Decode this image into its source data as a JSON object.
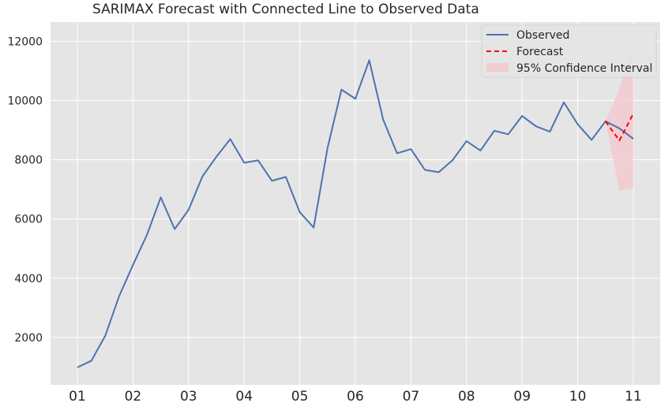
{
  "chart_data": {
    "type": "line",
    "title": "SARIMAX Forecast with Connected Line to Observed Data",
    "xlabel": "",
    "ylabel": "",
    "xlim": [
      0,
      41
    ],
    "ylim": [
      400,
      12650
    ],
    "grid": true,
    "legend_position": "top-right",
    "x_tick_labels": [
      "01",
      "02",
      "03",
      "04",
      "05",
      "06",
      "07",
      "08",
      "09",
      "10",
      "11"
    ],
    "y_ticks": [
      2000,
      4000,
      6000,
      8000,
      10000,
      12000
    ],
    "series": [
      {
        "name": "Observed",
        "color": "#4c72b0",
        "style": "solid",
        "x": [
          1,
          2,
          3,
          4,
          5,
          6,
          7,
          8,
          9,
          10,
          11,
          12,
          13,
          14,
          15,
          16,
          17,
          18,
          19,
          20,
          21,
          22,
          23,
          24,
          25,
          26,
          27,
          28,
          29,
          30,
          31,
          32,
          33,
          34,
          35,
          36,
          37,
          38,
          39,
          40,
          41
        ],
        "values": [
          990,
          1210,
          2050,
          3390,
          4450,
          5460,
          6730,
          5660,
          6310,
          7440,
          8100,
          8700,
          7900,
          7980,
          7290,
          7420,
          6230,
          5710,
          8400,
          10370,
          10060,
          11360,
          9360,
          8220,
          8360,
          7660,
          7580,
          7990,
          8630,
          8310,
          8980,
          8860,
          9480,
          9130,
          8950,
          9940,
          9200,
          8670,
          9300,
          9060,
          8710
        ]
      },
      {
        "name": "Forecast",
        "color": "#ff0000",
        "style": "dashed",
        "x": [
          39,
          40,
          41
        ],
        "values": [
          9300,
          8650,
          9560
        ]
      }
    ],
    "confidence_interval": {
      "name": "95% Confidence Interval",
      "color": "#f4c6cc",
      "x": [
        39,
        40,
        41
      ],
      "lower": [
        9300,
        6950,
        7050
      ],
      "upper": [
        9300,
        10400,
        11900
      ]
    }
  }
}
